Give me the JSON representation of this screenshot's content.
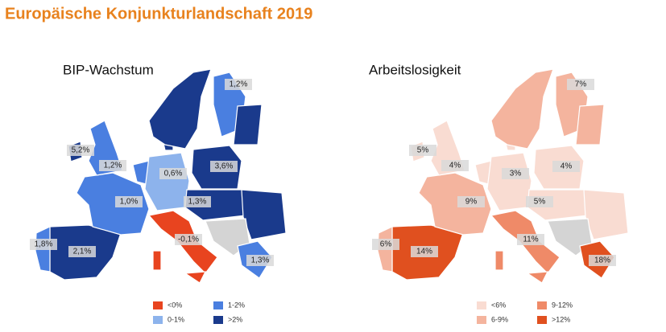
{
  "title": "Europäische Konjunkturlandschaft 2019",
  "maps": [
    {
      "title": "BIP-Wachstum",
      "labels": [
        "1,2%",
        "5,2%",
        "1,2%",
        "0,6%",
        "3,6%",
        "1,0%",
        "1,3%",
        "-0,1%",
        "1,8%",
        "2,1%",
        "1,3%"
      ],
      "legend": [
        {
          "label": "<0%",
          "color": "#e8441f"
        },
        {
          "label": "1-2%",
          "color": "#4a7fe0"
        },
        {
          "label": "0-1%",
          "color": "#8db3ec"
        },
        {
          "label": ">2%",
          "color": "#1a3a8c"
        }
      ]
    },
    {
      "title": "Arbeitslosigkeit",
      "labels": [
        "7%",
        "5%",
        "4%",
        "3%",
        "4%",
        "9%",
        "5%",
        "11%",
        "6%",
        "14%",
        "18%"
      ],
      "legend": [
        {
          "label": "<6%",
          "color": "#f9dcd2"
        },
        {
          "label": "9-12%",
          "color": "#ef8a68"
        },
        {
          "label": "6-9%",
          "color": "#f4b49e"
        },
        {
          "label": ">12%",
          "color": "#e0501f"
        }
      ]
    }
  ]
}
